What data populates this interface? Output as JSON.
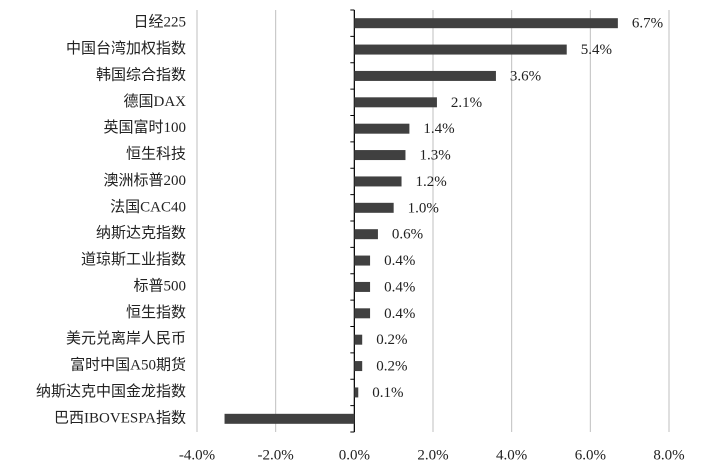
{
  "chart_data": {
    "type": "bar",
    "orientation": "horizontal",
    "categories": [
      "日经225",
      "中国台湾加权指数",
      "韩国综合指数",
      "德国DAX",
      "英国富时100",
      "恒生科技",
      "澳洲标普200",
      "法国CAC40",
      "纳斯达克指数",
      "道琼斯工业指数",
      "标普500",
      "恒生指数",
      "美元兑离岸人民币",
      "富时中国A50期货",
      "纳斯达克中国金龙指数",
      "巴西IBOVESPA指数"
    ],
    "values": [
      6.7,
      5.4,
      3.6,
      2.1,
      1.4,
      1.3,
      1.2,
      1.0,
      0.6,
      0.4,
      0.4,
      0.4,
      0.2,
      0.2,
      0.1,
      -3.3
    ],
    "value_labels": [
      "6.7%",
      "5.4%",
      "3.6%",
      "2.1%",
      "1.4%",
      "1.3%",
      "1.2%",
      "1.0%",
      "0.6%",
      "0.4%",
      "0.4%",
      "0.4%",
      "0.2%",
      "0.2%",
      "0.1%",
      null
    ],
    "color": "#404040",
    "xlim": [
      -4,
      8
    ],
    "xticks": [
      {
        "value": -4,
        "label": "-4.0%"
      },
      {
        "value": -2,
        "label": "-2.0%"
      },
      {
        "value": 0,
        "label": "0.0%"
      },
      {
        "value": 2,
        "label": "2.0%"
      },
      {
        "value": 4,
        "label": "4.0%"
      },
      {
        "value": 6,
        "label": "6.0%"
      },
      {
        "value": 8,
        "label": "8.0%"
      }
    ],
    "grid": true
  }
}
